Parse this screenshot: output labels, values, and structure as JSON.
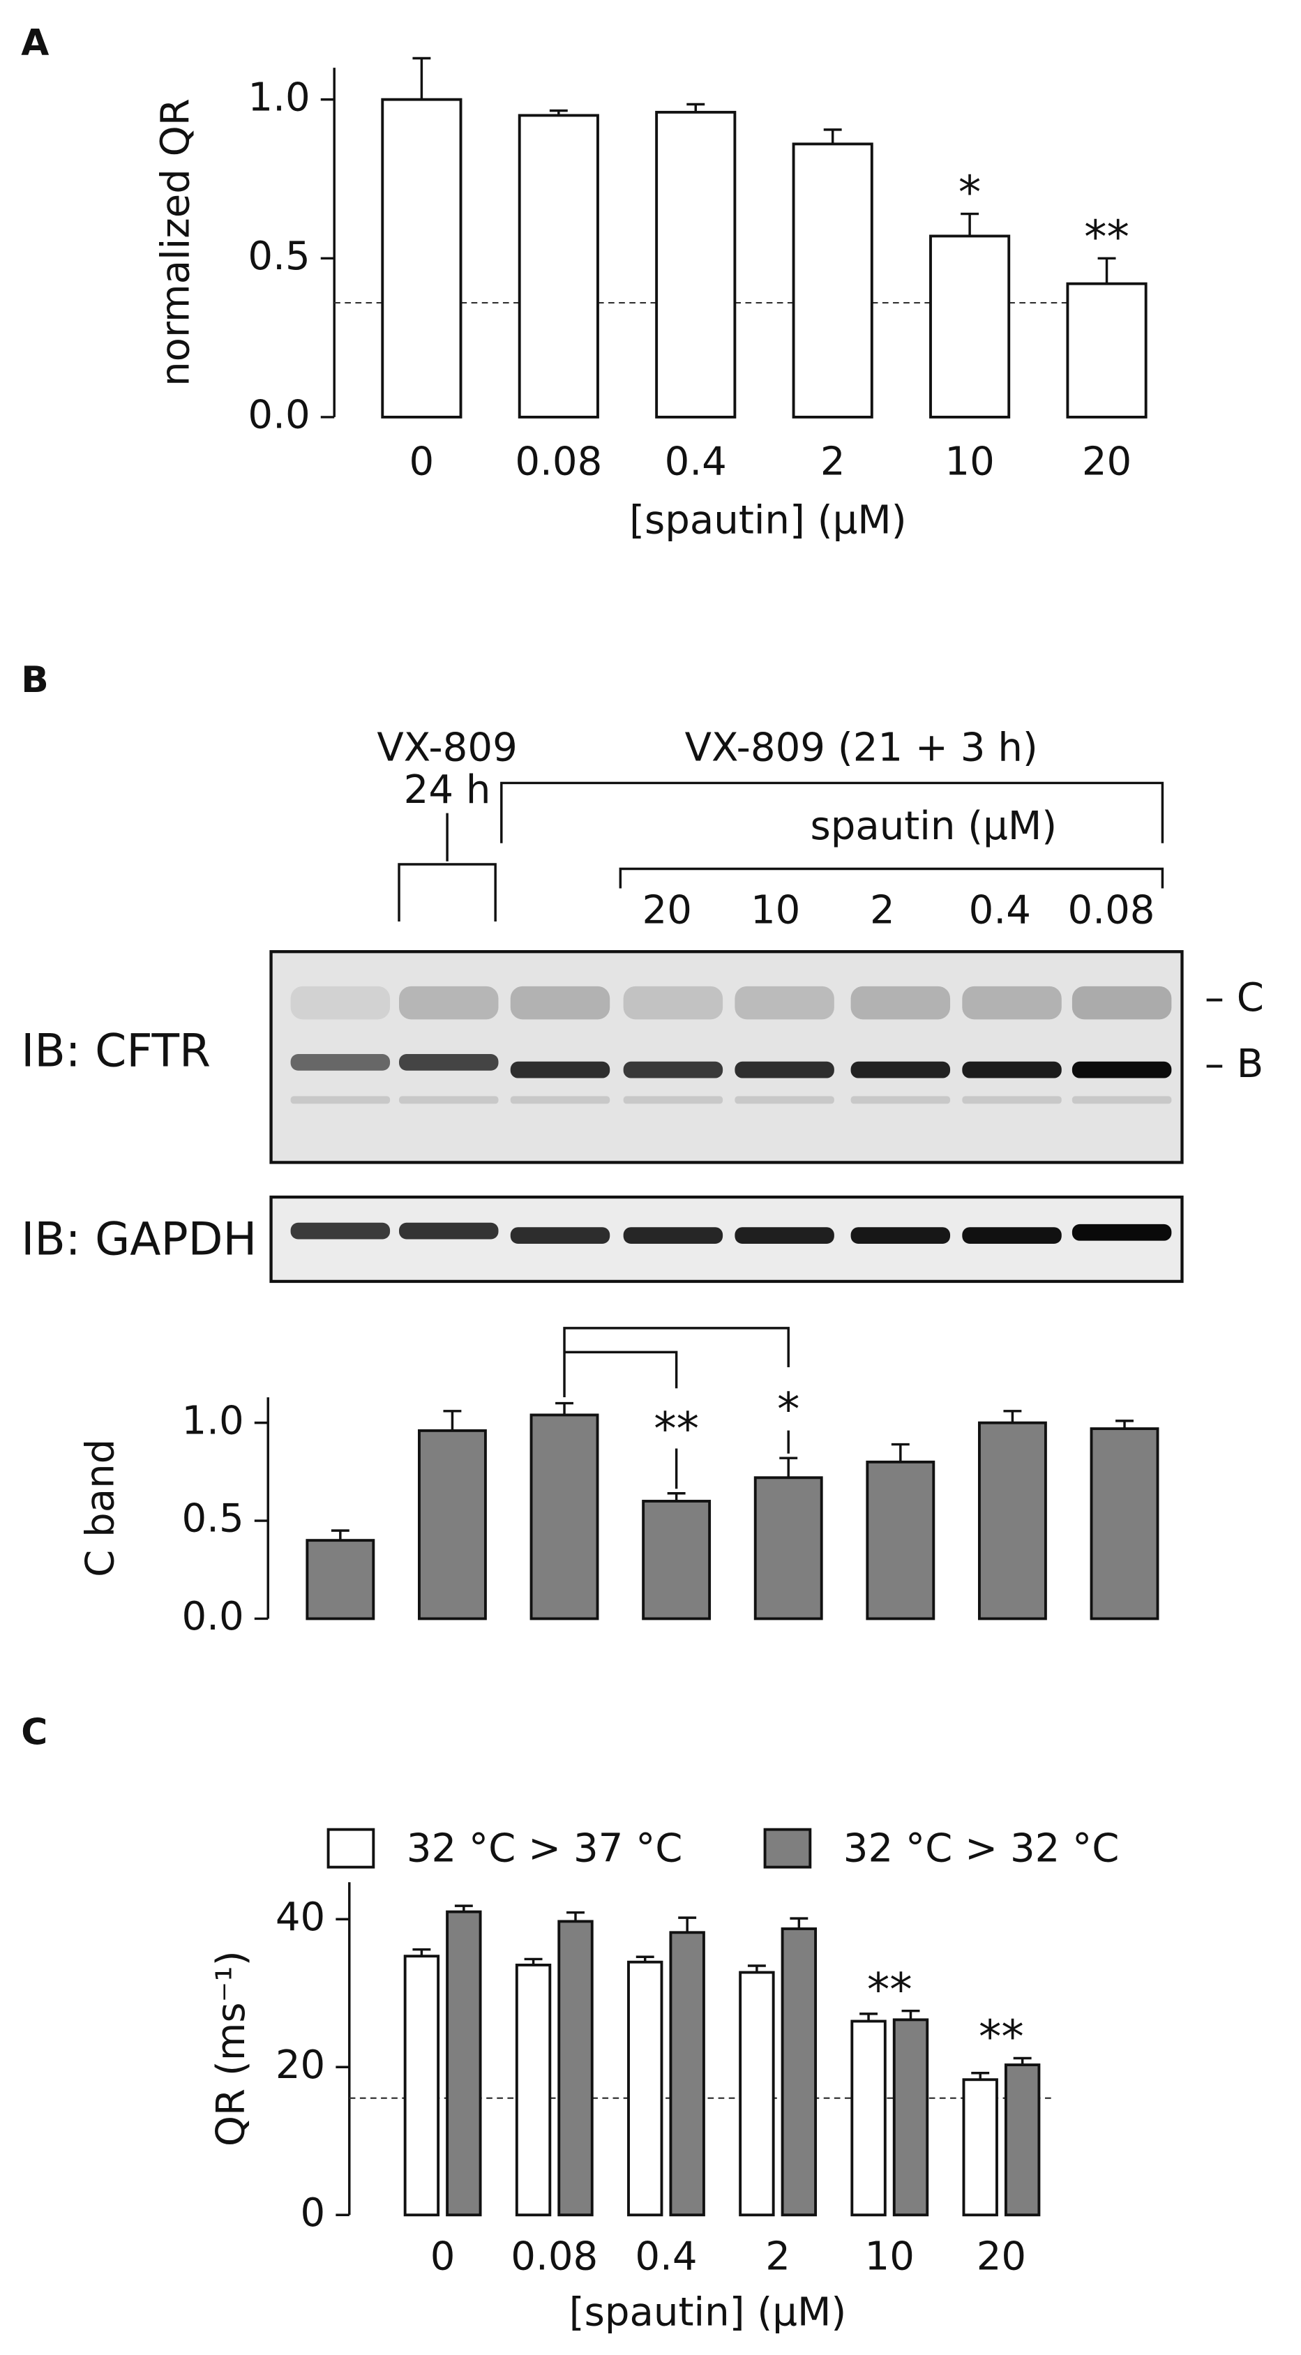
{
  "panels": [
    "A",
    "B",
    "C"
  ],
  "blot": {
    "top_left": [
      "VX-809",
      "24 h"
    ],
    "top_right": "VX-809 (21 + 3 h)",
    "spautin_label": "spautin (μM)",
    "lanes": [
      "20",
      "10",
      "2",
      "0.4",
      "0.08"
    ],
    "rows": [
      "IB: CFTR",
      "IB: GAPDH"
    ],
    "bands": [
      "– C",
      "– B"
    ]
  },
  "chart_data": [
    {
      "type": "bar",
      "ylabel": "normalized QR",
      "xlabel": "[spautin] (μM)",
      "categories": [
        "0",
        "0.08",
        "0.4",
        "2",
        "10",
        "20"
      ],
      "values": [
        1.0,
        0.95,
        0.96,
        0.86,
        0.57,
        0.42
      ],
      "errors": [
        0.13,
        0.015,
        0.025,
        0.045,
        0.07,
        0.08
      ],
      "color": "#ffffff",
      "ylim": [
        0,
        1.1
      ],
      "yticks": [
        {
          "value": 0,
          "label": "0.0"
        },
        {
          "value": 0.5,
          "label": "0.5"
        },
        {
          "value": 1,
          "label": "1.0"
        }
      ],
      "reference_line": 0.36,
      "annotations": [
        "*",
        "**"
      ]
    },
    {
      "type": "bar",
      "ylabel": "C band",
      "categories": [
        null,
        null,
        null,
        null,
        null,
        null,
        null,
        null
      ],
      "values": [
        0.4,
        0.96,
        1.04,
        0.6,
        0.72,
        0.8,
        1.0,
        0.97
      ],
      "errors": [
        0.05,
        0.1,
        0.06,
        0.04,
        0.1,
        0.09,
        0.06,
        0.04
      ],
      "color": "#7f7f7f",
      "ylim": [
        0,
        1.13
      ],
      "yticks": [
        {
          "value": 0,
          "label": "0.0"
        },
        {
          "value": 0.5,
          "label": "0.5"
        },
        {
          "value": 1,
          "label": "1.0"
        }
      ],
      "annotations": [
        "**",
        "*"
      ]
    },
    {
      "type": "grouped_bar",
      "ylabel": "QR (ms⁻¹)",
      "xlabel": "[spautin] (μM)",
      "categories": [
        "0",
        "0.08",
        "0.4",
        "2",
        "10",
        "20"
      ],
      "series": [
        {
          "name": "32 °C > 37 °C",
          "color": "#ffffff",
          "values": [
            35,
            33.8,
            34.2,
            32.8,
            26.2,
            18.3
          ],
          "errors": [
            0.9,
            0.8,
            0.7,
            0.9,
            1.0,
            0.9
          ]
        },
        {
          "name": "32 °C > 32 °C",
          "color": "#7f7f7f",
          "values": [
            41,
            39.7,
            38.2,
            38.7,
            26.4,
            20.3
          ],
          "errors": [
            0.8,
            1.2,
            2.0,
            1.4,
            1.2,
            0.9
          ]
        }
      ],
      "ylim": [
        0,
        45
      ],
      "yticks": [
        0,
        20,
        40
      ],
      "reference_line": 15.8,
      "annotations": [
        "**",
        "**"
      ]
    }
  ]
}
